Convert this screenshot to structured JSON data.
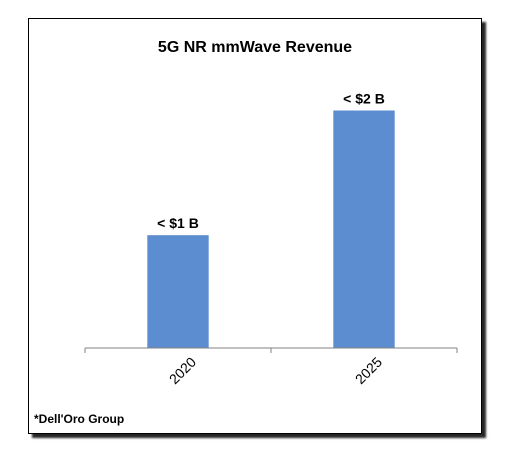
{
  "chart_data": {
    "type": "bar",
    "title": "5G NR mmWave Revenue",
    "categories": [
      "2020",
      "2025"
    ],
    "values": [
      0.95,
      2.0
    ],
    "data_labels": [
      "< $1 B",
      "< $2 B"
    ],
    "ylim": [
      0,
      2.4
    ],
    "grid": false,
    "legend": "none",
    "bar_color": "#5b8dd0",
    "source": "*Dell'Oro Group"
  }
}
